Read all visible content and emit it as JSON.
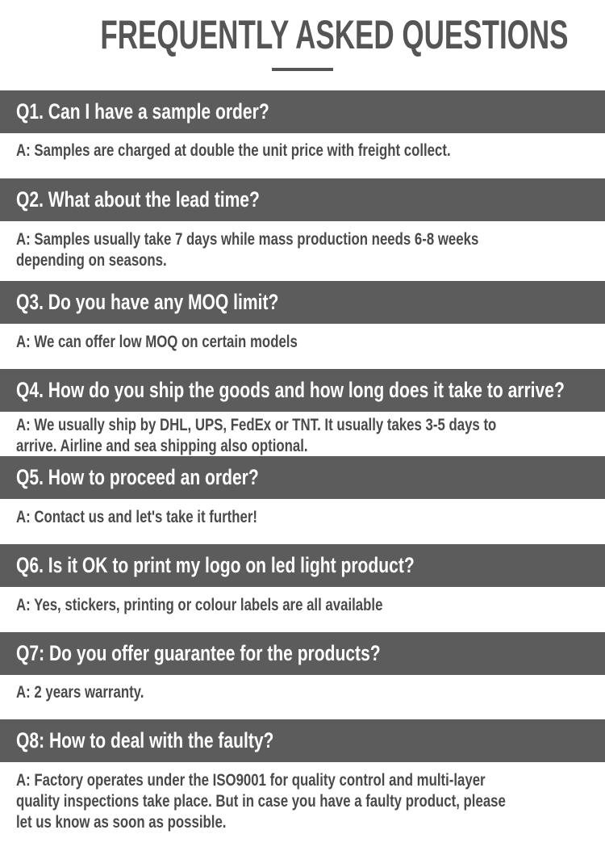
{
  "title": "FREQUENTLY ASKED QUESTIONS",
  "faqs": [
    {
      "q": "Q1. Can I have a sample order?",
      "a": [
        "A: Samples are charged at double the unit price with freight collect."
      ]
    },
    {
      "q": "Q2. What about the lead time?",
      "a": [
        "A: Samples usually take 7 days while mass production needs 6-8 weeks",
        "depending on seasons."
      ]
    },
    {
      "q": "Q3. Do you have any MOQ limit?",
      "a": [
        "A: We can offer low MOQ on certain models"
      ]
    },
    {
      "q": "Q4. How do you ship the goods and how long does it take to arrive?",
      "a": [
        "A: We usually ship by DHL, UPS, FedEx or TNT. It usually takes 3-5 days to",
        "arrive. Airline and sea shipping also optional."
      ]
    },
    {
      "q": "Q5. How to proceed an order?",
      "a": [
        "A: Contact us and let's take it further!"
      ]
    },
    {
      "q": "Q6. Is it OK to print my logo on led light product?",
      "a": [
        "A: Yes, stickers, printing or colour labels are all available"
      ]
    },
    {
      "q": "Q7: Do you offer guarantee for the products?",
      "a": [
        "A: 2 years warranty."
      ]
    },
    {
      "q": "Q8: How to deal with the faulty?",
      "a": [
        "A: Factory operates under the ISO9001 for quality control and multi-layer",
        "quality inspections take place. But in case you have a faulty product, please",
        "let us know as soon as possible."
      ]
    }
  ],
  "colors": {
    "bar": "#5c5c5c",
    "title": "#555555",
    "answer": "#4a4a4a"
  }
}
